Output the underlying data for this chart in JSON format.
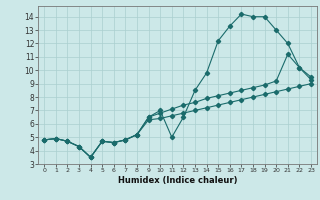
{
  "xlabel": "Humidex (Indice chaleur)",
  "xlim": [
    -0.5,
    23.5
  ],
  "ylim": [
    3,
    14.8
  ],
  "yticks": [
    3,
    4,
    5,
    6,
    7,
    8,
    9,
    10,
    11,
    12,
    13,
    14
  ],
  "xticks": [
    0,
    1,
    2,
    3,
    4,
    5,
    6,
    7,
    8,
    9,
    10,
    11,
    12,
    13,
    14,
    15,
    16,
    17,
    18,
    19,
    20,
    21,
    22,
    23
  ],
  "bg_color": "#cce8e8",
  "grid_color": "#aacfcf",
  "line_color": "#1a6b6b",
  "line1_x": [
    0,
    1,
    2,
    3,
    4,
    5,
    6,
    7,
    8,
    9,
    10,
    11,
    12,
    13,
    14,
    15,
    16,
    17,
    18,
    19,
    20,
    21,
    22,
    23
  ],
  "line1_y": [
    4.8,
    4.9,
    4.7,
    4.3,
    3.5,
    4.7,
    4.6,
    4.8,
    5.2,
    6.5,
    7.0,
    5.0,
    6.5,
    8.5,
    9.8,
    12.2,
    13.3,
    14.2,
    14.0,
    14.0,
    13.0,
    12.0,
    10.2,
    9.5
  ],
  "line2_x": [
    0,
    1,
    2,
    3,
    4,
    5,
    6,
    7,
    8,
    9,
    10,
    11,
    12,
    13,
    14,
    15,
    16,
    17,
    18,
    19,
    20,
    21,
    22,
    23
  ],
  "line2_y": [
    4.8,
    4.9,
    4.7,
    4.3,
    3.5,
    4.7,
    4.6,
    4.8,
    5.2,
    6.5,
    6.8,
    7.1,
    7.4,
    7.6,
    7.9,
    8.1,
    8.3,
    8.5,
    8.7,
    8.9,
    9.2,
    11.2,
    10.2,
    9.3
  ],
  "line3_x": [
    0,
    1,
    2,
    3,
    4,
    5,
    6,
    7,
    8,
    9,
    10,
    11,
    12,
    13,
    14,
    15,
    16,
    17,
    18,
    19,
    20,
    21,
    22,
    23
  ],
  "line3_y": [
    4.8,
    4.9,
    4.7,
    4.3,
    3.5,
    4.7,
    4.6,
    4.8,
    5.2,
    6.3,
    6.4,
    6.6,
    6.8,
    7.0,
    7.2,
    7.4,
    7.6,
    7.8,
    8.0,
    8.2,
    8.4,
    8.6,
    8.8,
    9.0
  ]
}
